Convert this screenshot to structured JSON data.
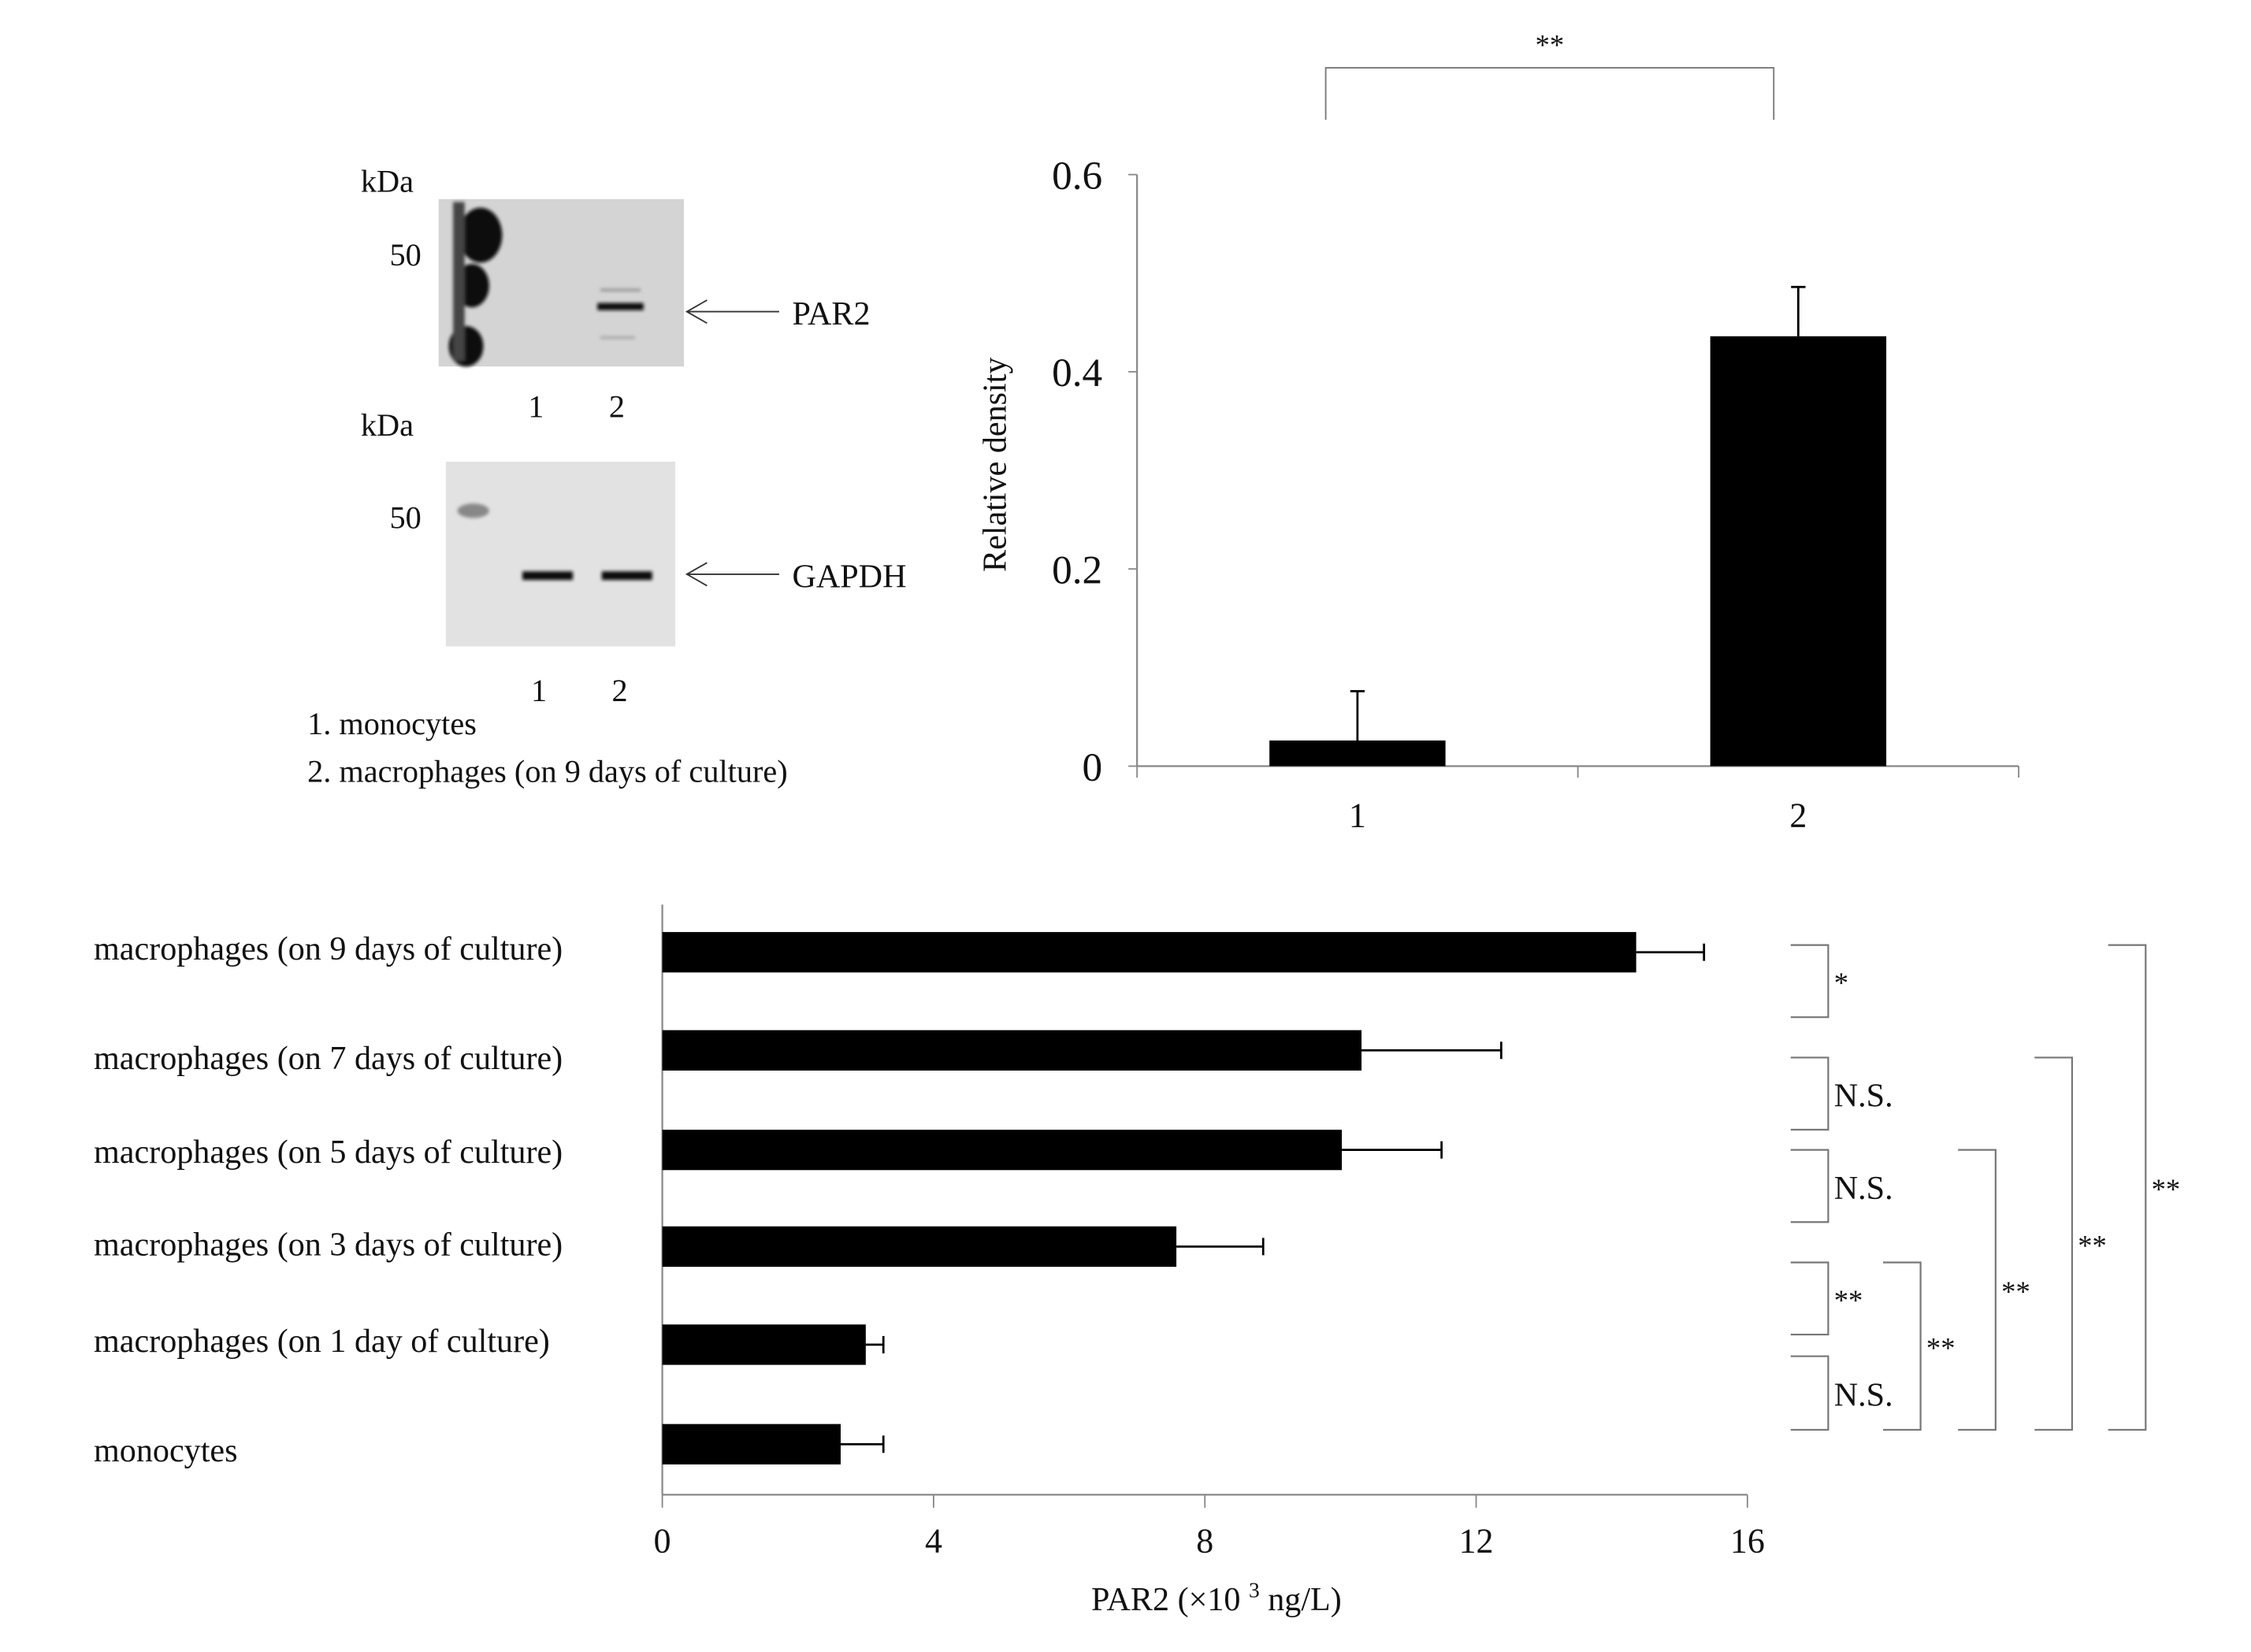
{
  "blots": {
    "par2": {
      "unit": "kDa",
      "marker": "50",
      "target": "PAR2",
      "lanes": [
        "1",
        "2"
      ]
    },
    "gapdh": {
      "unit": "kDa",
      "marker": "50",
      "target": "GAPDH",
      "lanes": [
        "1",
        "2"
      ]
    },
    "legend": [
      "1. monocytes",
      "2. macrophages (on 9 days of culture)"
    ]
  },
  "chart_data": [
    {
      "type": "bar",
      "title": "",
      "xlabel": "",
      "ylabel": "Relative density",
      "categories": [
        "1",
        "2"
      ],
      "values": [
        0.026,
        0.436
      ],
      "errors": [
        0.05,
        0.05
      ],
      "ylim": [
        0,
        0.6
      ],
      "yticks": [
        "0",
        "0.2",
        "0.4",
        "0.6"
      ],
      "grid": false,
      "significance": [
        {
          "pair": [
            "1",
            "2"
          ],
          "label": "**"
        }
      ]
    },
    {
      "type": "bar",
      "orientation": "horizontal",
      "xlabel": "PAR2 (×10",
      "xlabel_sup": "3",
      "xlabel_tail": " ng/L)",
      "categories": [
        "macrophages (on 9 days of culture)",
        "macrophages (on 7 days of culture)",
        "macrophages (on 5 days of culture)",
        "macrophages (on 3 days of culture)",
        "macrophages (on 1 day of culture)",
        "monocytes"
      ],
      "values": [
        14.36,
        10.31,
        10.02,
        7.58,
        3.0,
        2.63
      ],
      "errors": [
        1.0,
        2.06,
        1.47,
        1.28,
        0.26,
        0.63
      ],
      "xlim": [
        0,
        16
      ],
      "xticks": [
        "0",
        "4",
        "8",
        "12",
        "16"
      ],
      "grid": false,
      "significance": [
        {
          "pair": [
            0,
            1
          ],
          "label": "*"
        },
        {
          "pair": [
            1,
            2
          ],
          "label": "N.S."
        },
        {
          "pair": [
            2,
            3
          ],
          "label": "N.S."
        },
        {
          "pair": [
            3,
            4
          ],
          "label": "**"
        },
        {
          "pair": [
            4,
            5
          ],
          "label": "N.S."
        },
        {
          "pair": [
            3,
            5
          ],
          "label": "**"
        },
        {
          "pair": [
            2,
            5
          ],
          "label": "**"
        },
        {
          "pair": [
            1,
            5
          ],
          "label": "**"
        },
        {
          "pair": [
            0,
            5
          ],
          "label": "**"
        }
      ]
    }
  ]
}
